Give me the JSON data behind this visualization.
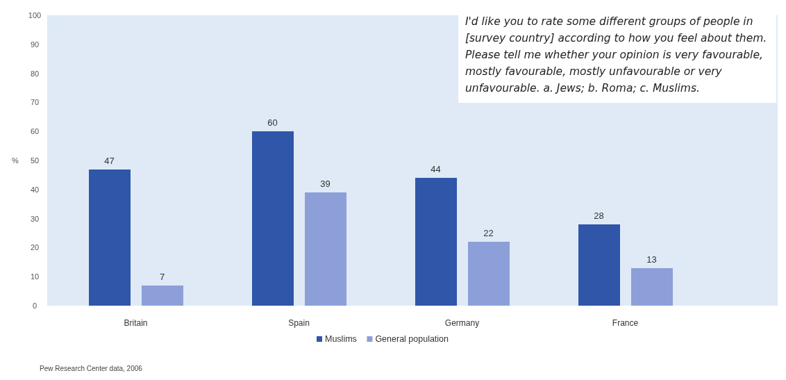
{
  "chart_data": {
    "type": "bar",
    "ylabel": "%",
    "categories": [
      "Britain",
      "Spain",
      "Germany",
      "France"
    ],
    "series": [
      {
        "name": "Muslims",
        "color": "#2f56a8",
        "values": [
          47,
          60,
          44,
          28
        ]
      },
      {
        "name": "General population",
        "color": "#8c9fd8",
        "values": [
          7,
          39,
          22,
          13
        ]
      }
    ],
    "ylim": [
      0,
      100
    ],
    "yticks": [
      0,
      10,
      20,
      30,
      40,
      50,
      60,
      70,
      80,
      90,
      100
    ],
    "data_labels": true,
    "legend": "bottom",
    "grid": false,
    "annotations": [
      "I'd like you to rate some different groups of people in [survey country] according to how you feel about them. Please tell me whether your opinion is very favourable, mostly favourable, mostly unfavourable or very unfavourable. a. Jews; b. Roma; c. Muslims.",
      "Pew Research Center data, 2006"
    ]
  }
}
